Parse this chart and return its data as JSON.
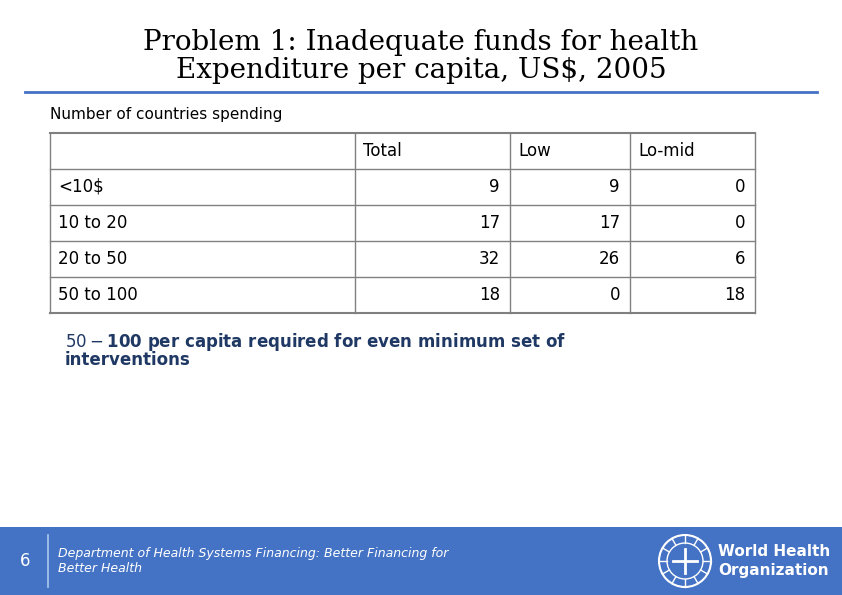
{
  "title_line1": "Problem 1: Inadequate funds for health",
  "title_line2": "Expenditure per capita, US$, 2005",
  "subtitle": "Number of countries spending",
  "table_headers": [
    "",
    "Total",
    "Low",
    "Lo-mid"
  ],
  "table_rows": [
    [
      "<10$",
      "9",
      "9",
      "0"
    ],
    [
      "10 to 20",
      "17",
      "17",
      "0"
    ],
    [
      "20 to 50",
      "32",
      "26",
      "6"
    ],
    [
      "50 to 100",
      "18",
      "0",
      "18"
    ]
  ],
  "note_line1": "$50 - $100 per capita required for even minimum set of",
  "note_line2": "interventions",
  "footer_number": "6",
  "footer_text_line1": "Department of Health Systems Financing: Better Financing for",
  "footer_text_line2": "Better Health",
  "title_color": "#000000",
  "header_rule_color": "#4472C4",
  "table_border_color": "#808080",
  "note_color": "#1F3864",
  "footer_bg_color": "#4472C4",
  "footer_text_color": "#FFFFFF",
  "bg_color": "#FFFFFF",
  "title_fontsize": 20,
  "subtitle_fontsize": 11,
  "table_header_fontsize": 12,
  "table_cell_fontsize": 12,
  "note_fontsize": 12,
  "footer_fontsize": 9
}
